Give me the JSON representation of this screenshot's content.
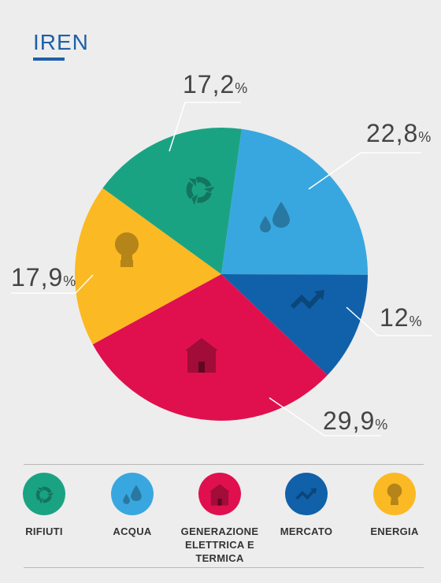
{
  "title": "IREN",
  "chart_data": {
    "type": "pie",
    "slices": [
      {
        "label": "ACQUA",
        "value": 22.8,
        "display": "22,8",
        "color": "#39a7df",
        "icon": "water-drops-icon"
      },
      {
        "label": "MERCATO",
        "value": 12,
        "display": "12",
        "color": "#1061a9",
        "icon": "trend-arrow-icon"
      },
      {
        "label": "GENERAZIONE ELETTRICA E TERMICA",
        "value": 29.9,
        "display": "29,9",
        "color": "#e0104f",
        "icon": "house-icon"
      },
      {
        "label": "ENERGIA",
        "value": 17.9,
        "display": "17,9",
        "color": "#fbb923",
        "icon": "light-bulb-icon"
      },
      {
        "label": "RIFIUTI",
        "value": 17.2,
        "display": "17,2",
        "color": "#1aa383",
        "icon": "recycle-icon"
      }
    ],
    "percent_symbol": "%"
  },
  "legend": [
    {
      "label": "RIFIUTI",
      "color": "#1aa383",
      "icon": "recycle-icon"
    },
    {
      "label": "ACQUA",
      "color": "#39a7df",
      "icon": "water-drops-icon"
    },
    {
      "label": "GENERAZIONE ELETTRICA E TERMICA",
      "color": "#e0104f",
      "icon": "house-icon"
    },
    {
      "label": "MERCATO",
      "color": "#1061a9",
      "icon": "trend-arrow-icon"
    },
    {
      "label": "ENERGIA",
      "color": "#fbb923",
      "icon": "light-bulb-icon"
    }
  ]
}
